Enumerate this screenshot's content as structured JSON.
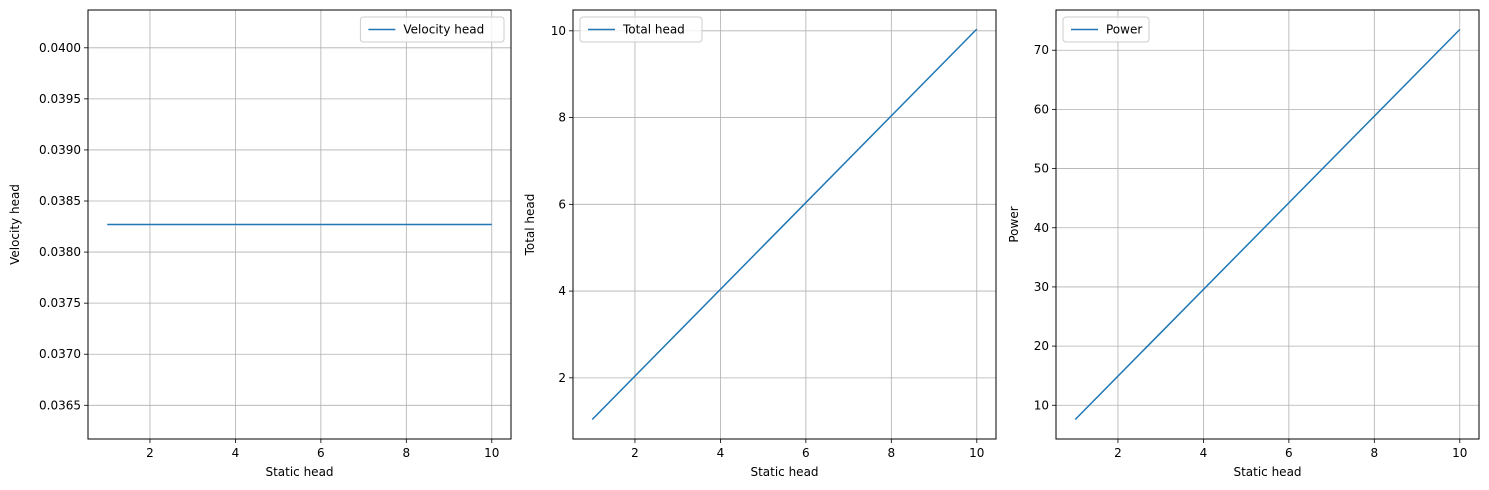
{
  "chart_data": [
    {
      "type": "line",
      "xlabel": "Static head",
      "ylabel": "Velocity head",
      "xlim": [
        0.55,
        10.45
      ],
      "ylim": [
        0.03617,
        0.04037
      ],
      "xticks": [
        2,
        4,
        6,
        8,
        10
      ],
      "yticks": [
        0.0365,
        0.037,
        0.0375,
        0.038,
        0.0385,
        0.039,
        0.0395,
        0.04
      ],
      "ytick_labels": [
        "0.0365",
        "0.0370",
        "0.0375",
        "0.0380",
        "0.0385",
        "0.0390",
        "0.0395",
        "0.0400"
      ],
      "grid": true,
      "legend_position": "upper right",
      "series": [
        {
          "name": "Velocity head",
          "color": "#1f77b4",
          "x": [
            1,
            10
          ],
          "y": [
            0.03827,
            0.03827
          ]
        }
      ]
    },
    {
      "type": "line",
      "xlabel": "Static head",
      "ylabel": "Total head",
      "xlim": [
        0.55,
        10.45
      ],
      "ylim": [
        0.59,
        10.48
      ],
      "xticks": [
        2,
        4,
        6,
        8,
        10
      ],
      "yticks": [
        2,
        4,
        6,
        8,
        10
      ],
      "ytick_labels": [
        "2",
        "4",
        "6",
        "8",
        "10"
      ],
      "grid": true,
      "legend_position": "upper left",
      "series": [
        {
          "name": "Total head",
          "color": "#1f77b4",
          "x": [
            1,
            10
          ],
          "y": [
            1.04,
            10.04
          ]
        }
      ]
    },
    {
      "type": "line",
      "xlabel": "Static head",
      "ylabel": "Power",
      "xlim": [
        0.55,
        10.45
      ],
      "ylim": [
        4.3,
        76.8
      ],
      "xticks": [
        2,
        4,
        6,
        8,
        10
      ],
      "yticks": [
        10,
        20,
        30,
        40,
        50,
        60,
        70
      ],
      "ytick_labels": [
        "10",
        "20",
        "30",
        "40",
        "50",
        "60",
        "70"
      ],
      "grid": true,
      "legend_position": "upper left",
      "series": [
        {
          "name": "Power",
          "color": "#1f77b4",
          "x": [
            1,
            10
          ],
          "y": [
            7.6,
            73.5
          ]
        }
      ]
    }
  ]
}
